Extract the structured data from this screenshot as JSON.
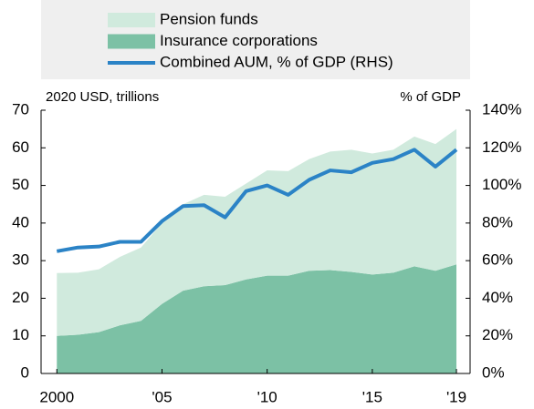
{
  "chart_data": {
    "type": "stacked-area-line",
    "x": [
      2000,
      2001,
      2002,
      2003,
      2004,
      2005,
      2006,
      2007,
      2008,
      2009,
      2010,
      2011,
      2012,
      2013,
      2014,
      2015,
      2016,
      2017,
      2018,
      2019
    ],
    "series": [
      {
        "name": "Pension funds",
        "color": "#d0eadd",
        "type": "area",
        "values": [
          16.7,
          16.5,
          16.7,
          18.2,
          19.5,
          21.5,
          23,
          24.3,
          23.5,
          25.5,
          28,
          27.8,
          29.7,
          31.5,
          32.5,
          32.2,
          32.7,
          34.5,
          33.7,
          36
        ]
      },
      {
        "name": "Insurance corporations",
        "color": "#7cc1a5",
        "type": "area",
        "values": [
          10,
          10.3,
          11,
          12.8,
          14,
          18.5,
          22,
          23.2,
          23.5,
          25,
          26,
          26,
          27.3,
          27.5,
          27,
          26.3,
          26.8,
          28.5,
          27.3,
          29
        ]
      },
      {
        "name": "Combined AUM, % of GDP (RHS)",
        "color": "#2b83c6",
        "type": "line",
        "axis": "y2",
        "values": [
          65,
          67,
          67.5,
          70,
          70,
          81,
          89,
          89.5,
          83,
          97,
          100,
          95,
          103,
          108,
          107,
          112,
          114,
          119,
          110,
          119
        ]
      }
    ],
    "y_axis_label": "2020 USD, trillions",
    "y2_axis_label": "% of GDP",
    "xlim": [
      1999.25,
      2019.65
    ],
    "xticks": [
      {
        "value": 2000,
        "label": "2000"
      },
      {
        "value": 2005,
        "label": "'05"
      },
      {
        "value": 2010,
        "label": "'10"
      },
      {
        "value": 2015,
        "label": "'15"
      },
      {
        "value": 2019,
        "label": "'19"
      }
    ],
    "ylim": [
      0,
      70
    ],
    "yticks": [
      0,
      10,
      20,
      30,
      40,
      50,
      60,
      70
    ],
    "y2lim": [
      0,
      140
    ],
    "y2ticks": [
      {
        "value": 0,
        "label": "0%"
      },
      {
        "value": 20,
        "label": "20%"
      },
      {
        "value": 40,
        "label": "40%"
      },
      {
        "value": 60,
        "label": "60%"
      },
      {
        "value": 80,
        "label": "80%"
      },
      {
        "value": 100,
        "label": "100%"
      },
      {
        "value": 120,
        "label": "120%"
      },
      {
        "value": 140,
        "label": "140%"
      }
    ]
  }
}
